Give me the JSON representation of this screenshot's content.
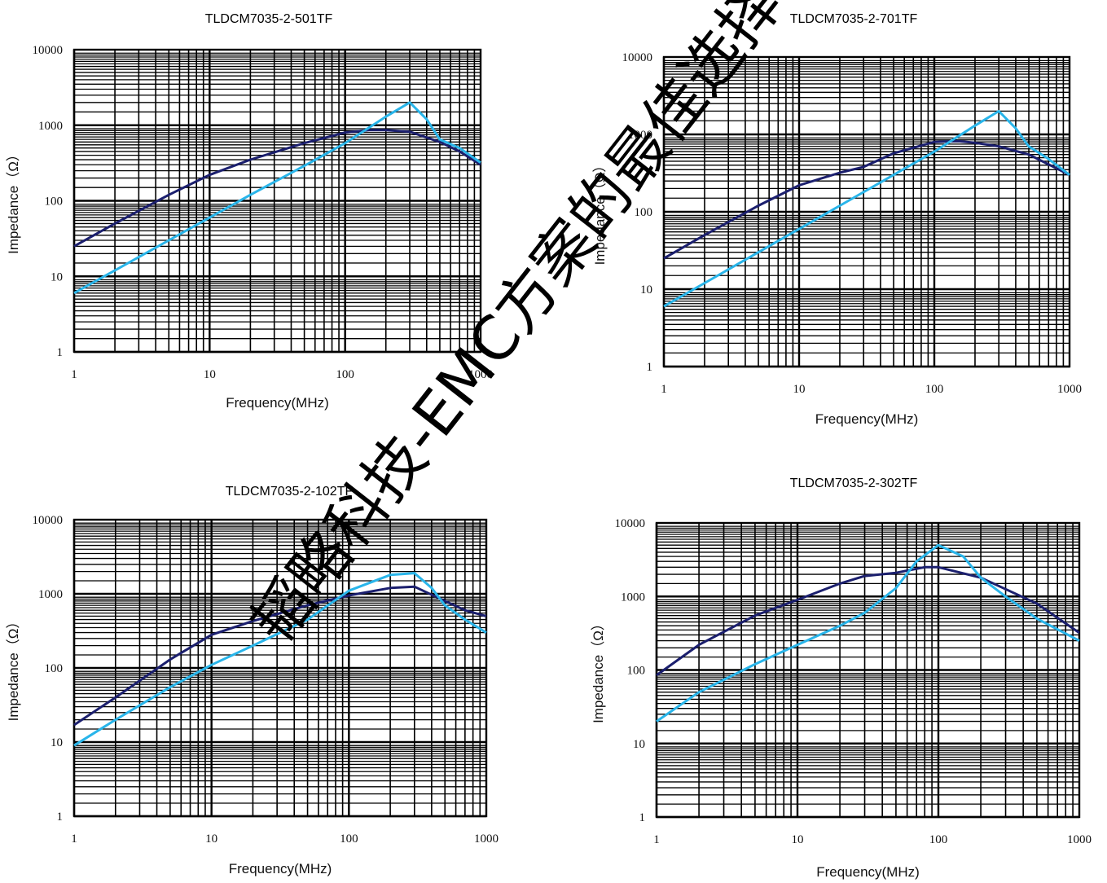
{
  "watermark": "韬略科技-EMC方案的最佳选择",
  "colors": {
    "series_dark": "#1b1f6e",
    "series_light": "#29b5ea",
    "grid": "#000000"
  },
  "chart_data": [
    {
      "type": "line",
      "title": "TLDCM7035-2-501TF",
      "xlabel": "Frequency(MHz)",
      "ylabel": "Impedance（Ω）",
      "xscale": "log",
      "yscale": "log",
      "xlim": [
        1,
        1000
      ],
      "ylim": [
        1,
        10000
      ],
      "xticks": [
        "1",
        "10",
        "100",
        "1000"
      ],
      "yticks": [
        "1",
        "10",
        "100",
        "1000",
        "10000"
      ],
      "grid": true,
      "series": [
        {
          "color": "dark",
          "x": [
            1,
            2,
            5,
            10,
            20,
            50,
            100,
            150,
            200,
            300,
            500,
            700,
            1000
          ],
          "y": [
            25,
            50,
            120,
            220,
            350,
            580,
            800,
            860,
            860,
            820,
            600,
            450,
            300
          ]
        },
        {
          "color": "light",
          "x": [
            1,
            2,
            5,
            10,
            20,
            50,
            100,
            200,
            300,
            400,
            500,
            700,
            1000
          ],
          "y": [
            6,
            12,
            30,
            60,
            120,
            290,
            580,
            1300,
            2000,
            1200,
            650,
            500,
            320
          ]
        }
      ]
    },
    {
      "type": "line",
      "title": "TLDCM7035-2-701TF",
      "xlabel": "Frequency(MHz)",
      "ylabel": "Impedance（Ω）",
      "xscale": "log",
      "yscale": "log",
      "xlim": [
        1,
        1000
      ],
      "ylim": [
        1,
        10000
      ],
      "xticks": [
        "1",
        "10",
        "100",
        "1000"
      ],
      "yticks": [
        "1",
        "10",
        "100",
        "1000",
        "10000"
      ],
      "grid": true,
      "series": [
        {
          "color": "dark",
          "x": [
            1,
            2,
            5,
            10,
            20,
            30,
            50,
            100,
            150,
            200,
            300,
            500,
            1000
          ],
          "y": [
            25,
            50,
            120,
            220,
            320,
            380,
            570,
            800,
            820,
            780,
            700,
            550,
            300
          ]
        },
        {
          "color": "light",
          "x": [
            1,
            2,
            5,
            10,
            20,
            50,
            100,
            200,
            300,
            400,
            500,
            700,
            1000
          ],
          "y": [
            6,
            12,
            30,
            60,
            120,
            300,
            600,
            1300,
            2000,
            1200,
            700,
            480,
            300
          ]
        }
      ]
    },
    {
      "type": "line",
      "title": "TLDCM7035-2-102TF",
      "xlabel": "Frequency(MHz)",
      "ylabel": "Impedance（Ω）",
      "xscale": "log",
      "yscale": "log",
      "xlim": [
        1,
        1000
      ],
      "ylim": [
        1,
        10000
      ],
      "xticks": [
        "1",
        "10",
        "100",
        "1000"
      ],
      "yticks": [
        "1",
        "10",
        "100",
        "1000",
        "10000"
      ],
      "grid": true,
      "series": [
        {
          "color": "dark",
          "x": [
            1,
            2,
            5,
            10,
            20,
            50,
            100,
            200,
            300,
            500,
            700,
            1000
          ],
          "y": [
            17,
            40,
            130,
            280,
            430,
            700,
            950,
            1200,
            1250,
            800,
            600,
            500
          ]
        },
        {
          "color": "light",
          "x": [
            1,
            2,
            5,
            10,
            20,
            50,
            100,
            200,
            300,
            400,
            500,
            700,
            1000
          ],
          "y": [
            9,
            20,
            55,
            110,
            200,
            450,
            1100,
            1800,
            1900,
            1200,
            700,
            450,
            300
          ]
        }
      ]
    },
    {
      "type": "line",
      "title": "TLDCM7035-2-302TF",
      "xlabel": "Frequency(MHz)",
      "ylabel": "Impedance（Ω）",
      "xscale": "log",
      "yscale": "log",
      "xlim": [
        1,
        1000
      ],
      "ylim": [
        1,
        10000
      ],
      "xticks": [
        "1",
        "10",
        "100",
        "1000"
      ],
      "yticks": [
        "1",
        "10",
        "100",
        "1000",
        "10000"
      ],
      "grid": true,
      "series": [
        {
          "color": "dark",
          "x": [
            1,
            2,
            5,
            10,
            20,
            30,
            50,
            80,
            100,
            200,
            500,
            1000
          ],
          "y": [
            85,
            220,
            550,
            900,
            1500,
            1900,
            2100,
            2500,
            2500,
            1800,
            800,
            320
          ]
        },
        {
          "color": "light",
          "x": [
            1,
            2,
            5,
            10,
            20,
            30,
            50,
            70,
            100,
            150,
            200,
            300,
            500,
            1000
          ],
          "y": [
            20,
            50,
            120,
            220,
            400,
            600,
            1300,
            3000,
            5000,
            3500,
            1800,
            1000,
            500,
            250
          ]
        }
      ]
    }
  ]
}
